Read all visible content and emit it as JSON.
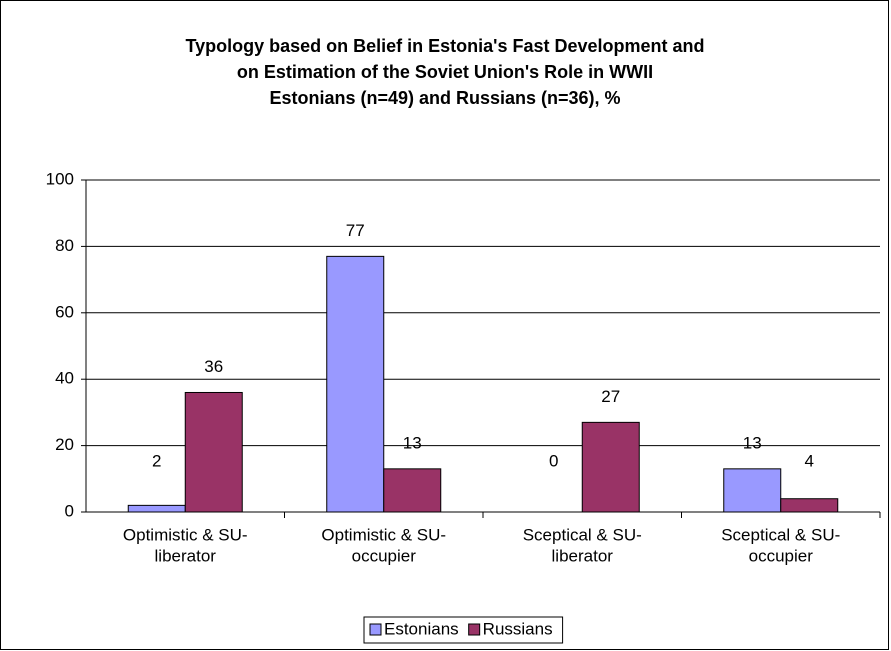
{
  "chart_data": {
    "type": "bar",
    "title": [
      "Typology based on Belief in Estonia's Fast Development and",
      "on Estimation of the Soviet Union's Role in WWII",
      "Estonians (n=49) and Russians (n=36), %"
    ],
    "categories": [
      [
        "Optimistic & SU-",
        "liberator"
      ],
      [
        "Optimistic & SU-",
        "occupier"
      ],
      [
        "Sceptical & SU-",
        "liberator"
      ],
      [
        "Sceptical & SU-",
        "occupier"
      ]
    ],
    "series": [
      {
        "name": "Estonians",
        "color": "#9999ff",
        "values": [
          2,
          77,
          0,
          13
        ]
      },
      {
        "name": "Russians",
        "color": "#993366",
        "values": [
          36,
          13,
          27,
          4
        ]
      }
    ],
    "ylim": [
      0,
      100
    ],
    "yticks": [
      0,
      20,
      40,
      60,
      80,
      100
    ],
    "grid": true,
    "legend": "bottom"
  }
}
